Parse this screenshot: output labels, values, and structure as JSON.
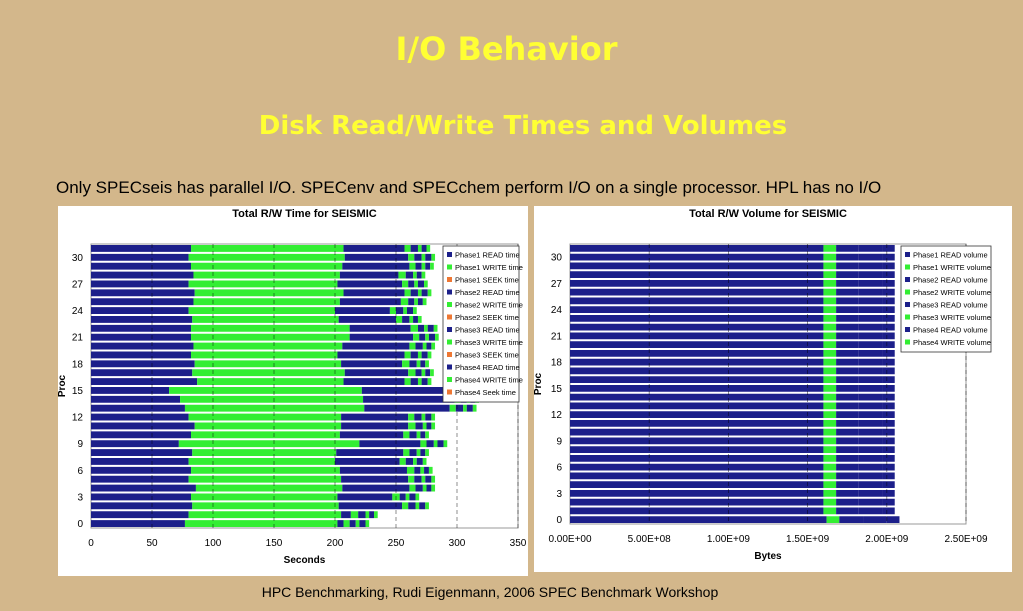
{
  "slide": {
    "title": "I/O Behavior",
    "subtitle": "Disk Read/Write Times and Volumes",
    "note": "Only SPECseis has parallel I/O. SPECenv and SPECchem perform I/O on a single processor. HPL has no I/O",
    "footer": "HPC Benchmarking, Rudi Eigenmann, 2006 SPEC Benchmark Workshop"
  },
  "colors": {
    "background": "#d3b78b",
    "heading": "#ffff33",
    "read_blue": "#1c1f8a",
    "write_green": "#33ee33",
    "seek_orange": "#ee7733"
  },
  "chart_data": [
    {
      "type": "bar",
      "orientation": "horizontal",
      "stacked": true,
      "title": "Total R/W Time for SEISMIC",
      "xlabel": "Seconds",
      "ylabel": "Proc",
      "xlim": [
        0,
        350
      ],
      "xticks": [
        "0",
        "50",
        "100",
        "150",
        "200",
        "250",
        "300",
        "350"
      ],
      "yticks": [
        "0",
        "3",
        "6",
        "9",
        "12",
        "15",
        "18",
        "21",
        "24",
        "27",
        "30"
      ],
      "categories": [
        0,
        1,
        2,
        3,
        4,
        5,
        6,
        7,
        8,
        9,
        10,
        11,
        12,
        13,
        14,
        15,
        16,
        17,
        18,
        19,
        20,
        21,
        22,
        23,
        24,
        25,
        26,
        27,
        28,
        29,
        30,
        31
      ],
      "legend_position": "right",
      "series": [
        {
          "name": "Phase1 READ time",
          "color": "#1c1f8a",
          "values": [
            77,
            80,
            83,
            82,
            86,
            80,
            82,
            80,
            83,
            72,
            82,
            85,
            80,
            77,
            73,
            64,
            87,
            83,
            85,
            82,
            84,
            82,
            82,
            83,
            80,
            84,
            85,
            80,
            84,
            82,
            80,
            82
          ]
        },
        {
          "name": "Phase1 WRITE time",
          "color": "#33ee33",
          "values": [
            125,
            125,
            120,
            120,
            120,
            125,
            122,
            120,
            118,
            148,
            122,
            120,
            125,
            147,
            150,
            158,
            120,
            125,
            120,
            120,
            122,
            130,
            130,
            120,
            120,
            120,
            122,
            122,
            120,
            124,
            128,
            125
          ]
        },
        {
          "name": "Phase1 SEEK time",
          "color": "#ee7733",
          "values": [
            0,
            0,
            0,
            0,
            0,
            0,
            0,
            0,
            0,
            0,
            0,
            0,
            0,
            0,
            0,
            0,
            0,
            0,
            0,
            0,
            0,
            0,
            0,
            0,
            0,
            0,
            0,
            0,
            0,
            0,
            0,
            0
          ]
        },
        {
          "name": "Phase2 READ time",
          "color": "#1c1f8a",
          "values": [
            5,
            8,
            52,
            45,
            55,
            55,
            55,
            53,
            55,
            50,
            52,
            55,
            55,
            70,
            75,
            72,
            50,
            52,
            50,
            55,
            55,
            52,
            50,
            47,
            45,
            50,
            50,
            53,
            48,
            55,
            52,
            50
          ]
        },
        {
          "name": "Phase2 WRITE time",
          "color": "#33ee33",
          "values": [
            5,
            6,
            5,
            6,
            5,
            5,
            6,
            5,
            5,
            5,
            5,
            6,
            5,
            5,
            5,
            5,
            5,
            6,
            6,
            5,
            5,
            5,
            6,
            5,
            5,
            6,
            5,
            5,
            6,
            5,
            5,
            5
          ]
        },
        {
          "name": "Phase2 SEEK time",
          "color": "#ee7733",
          "values": [
            0,
            0,
            0,
            0,
            0,
            0,
            0,
            0,
            0,
            0,
            0,
            0,
            0,
            0,
            0,
            0,
            0,
            0,
            0,
            0,
            0,
            0,
            0,
            0,
            0,
            0,
            0,
            0,
            0,
            0,
            0,
            0
          ]
        },
        {
          "name": "Phase3 READ time",
          "color": "#1c1f8a",
          "values": [
            5,
            6,
            6,
            5,
            6,
            6,
            5,
            6,
            6,
            6,
            6,
            6,
            6,
            6,
            5,
            6,
            6,
            5,
            6,
            6,
            6,
            5,
            5,
            6,
            6,
            5,
            6,
            5,
            6,
            5,
            6,
            6
          ]
        },
        {
          "name": "Phase3 WRITE time",
          "color": "#33ee33",
          "values": [
            3,
            3,
            3,
            3,
            3,
            3,
            3,
            3,
            3,
            3,
            3,
            3,
            3,
            3,
            3,
            3,
            3,
            3,
            3,
            3,
            3,
            3,
            3,
            3,
            3,
            3,
            3,
            3,
            3,
            3,
            3,
            3
          ]
        },
        {
          "name": "Phase3 SEEK time",
          "color": "#ee7733",
          "values": [
            0,
            0,
            0,
            0,
            0,
            0,
            0,
            0,
            0,
            0,
            0,
            0,
            0,
            0,
            0,
            0,
            0,
            0,
            0,
            0,
            0,
            0,
            0,
            0,
            0,
            0,
            0,
            0,
            0,
            0,
            0,
            0
          ]
        },
        {
          "name": "Phase4 READ time",
          "color": "#1c1f8a",
          "values": [
            5,
            4,
            5,
            5,
            4,
            5,
            4,
            5,
            4,
            5,
            4,
            4,
            5,
            5,
            4,
            5,
            5,
            4,
            4,
            5,
            4,
            5,
            5,
            4,
            5,
            4,
            5,
            5,
            4,
            4,
            5,
            4
          ]
        },
        {
          "name": "Phase4 WRITE time",
          "color": "#33ee33",
          "values": [
            3,
            3,
            3,
            3,
            3,
            3,
            3,
            3,
            3,
            3,
            3,
            3,
            3,
            3,
            3,
            3,
            3,
            3,
            3,
            3,
            3,
            3,
            3,
            3,
            3,
            3,
            3,
            3,
            3,
            3,
            3,
            3
          ]
        },
        {
          "name": "Phase4 Seek time",
          "color": "#ee7733",
          "values": [
            0,
            0,
            0,
            0,
            0,
            0,
            0,
            0,
            0,
            0,
            0,
            0,
            0,
            0,
            0,
            0,
            0,
            0,
            0,
            0,
            0,
            0,
            0,
            0,
            0,
            0,
            0,
            0,
            0,
            0,
            0,
            0
          ]
        }
      ]
    },
    {
      "type": "bar",
      "orientation": "horizontal",
      "stacked": true,
      "title": "Total R/W Volume for SEISMIC",
      "xlabel": "Bytes",
      "ylabel": "Proc",
      "xlim": [
        0,
        2500000000
      ],
      "xticks": [
        "0.00E+00",
        "5.00E+08",
        "1.00E+09",
        "1.50E+09",
        "2.00E+09",
        "2.50E+09"
      ],
      "yticks": [
        "0",
        "3",
        "6",
        "9",
        "12",
        "15",
        "18",
        "21",
        "24",
        "27",
        "30"
      ],
      "categories": [
        0,
        1,
        2,
        3,
        4,
        5,
        6,
        7,
        8,
        9,
        10,
        11,
        12,
        13,
        14,
        15,
        16,
        17,
        18,
        19,
        20,
        21,
        22,
        23,
        24,
        25,
        26,
        27,
        28,
        29,
        30,
        31
      ],
      "legend_position": "right",
      "series": [
        {
          "name": "Phase1 READ volume",
          "color": "#1c1f8a",
          "values": [
            1620000000,
            1600000000,
            1600000000,
            1600000000,
            1600000000,
            1600000000,
            1600000000,
            1600000000,
            1600000000,
            1600000000,
            1600000000,
            1600000000,
            1600000000,
            1600000000,
            1600000000,
            1600000000,
            1600000000,
            1600000000,
            1600000000,
            1600000000,
            1600000000,
            1600000000,
            1600000000,
            1600000000,
            1600000000,
            1600000000,
            1600000000,
            1600000000,
            1600000000,
            1600000000,
            1600000000,
            1600000000
          ]
        },
        {
          "name": "Phase1 WRITE volume",
          "color": "#33ee33",
          "values": [
            80000000,
            80000000,
            80000000,
            80000000,
            80000000,
            80000000,
            80000000,
            80000000,
            80000000,
            80000000,
            80000000,
            80000000,
            80000000,
            80000000,
            80000000,
            80000000,
            80000000,
            80000000,
            80000000,
            80000000,
            80000000,
            80000000,
            80000000,
            80000000,
            80000000,
            80000000,
            80000000,
            80000000,
            80000000,
            80000000,
            80000000,
            80000000
          ]
        },
        {
          "name": "Phase2 READ volume",
          "color": "#1c1f8a",
          "values": [
            150000000,
            140000000,
            140000000,
            140000000,
            140000000,
            140000000,
            140000000,
            140000000,
            140000000,
            140000000,
            140000000,
            140000000,
            140000000,
            140000000,
            140000000,
            140000000,
            140000000,
            140000000,
            140000000,
            140000000,
            140000000,
            140000000,
            140000000,
            140000000,
            140000000,
            140000000,
            140000000,
            140000000,
            140000000,
            140000000,
            140000000,
            140000000
          ]
        },
        {
          "name": "Phase2 WRITE volume",
          "color": "#33ee33",
          "values": [
            0,
            0,
            0,
            0,
            0,
            0,
            0,
            0,
            0,
            0,
            0,
            0,
            0,
            0,
            0,
            0,
            0,
            0,
            0,
            0,
            0,
            0,
            0,
            0,
            0,
            0,
            0,
            0,
            0,
            0,
            0,
            0
          ]
        },
        {
          "name": "Phase3 READ volume",
          "color": "#1c1f8a",
          "values": [
            150000000,
            150000000,
            150000000,
            150000000,
            150000000,
            150000000,
            150000000,
            150000000,
            150000000,
            150000000,
            150000000,
            150000000,
            150000000,
            150000000,
            150000000,
            150000000,
            150000000,
            150000000,
            150000000,
            150000000,
            150000000,
            150000000,
            150000000,
            150000000,
            150000000,
            150000000,
            150000000,
            150000000,
            150000000,
            150000000,
            150000000,
            150000000
          ]
        },
        {
          "name": "Phase3 WRITE volume",
          "color": "#33ee33",
          "values": [
            0,
            0,
            0,
            0,
            0,
            0,
            0,
            0,
            0,
            0,
            0,
            0,
            0,
            0,
            0,
            0,
            0,
            0,
            0,
            0,
            0,
            0,
            0,
            0,
            0,
            0,
            0,
            0,
            0,
            0,
            0,
            0
          ]
        },
        {
          "name": "Phase4 READ volume",
          "color": "#1c1f8a",
          "values": [
            80000000,
            80000000,
            80000000,
            80000000,
            80000000,
            80000000,
            80000000,
            80000000,
            80000000,
            80000000,
            80000000,
            80000000,
            80000000,
            80000000,
            80000000,
            80000000,
            80000000,
            80000000,
            80000000,
            80000000,
            80000000,
            80000000,
            80000000,
            80000000,
            80000000,
            80000000,
            80000000,
            80000000,
            80000000,
            80000000,
            80000000,
            80000000
          ]
        },
        {
          "name": "Phase4 WRITE volume",
          "color": "#33ee33",
          "values": [
            0,
            0,
            0,
            0,
            0,
            0,
            0,
            0,
            0,
            0,
            0,
            0,
            0,
            0,
            0,
            0,
            0,
            0,
            0,
            0,
            0,
            0,
            0,
            0,
            0,
            0,
            0,
            0,
            0,
            0,
            0,
            0
          ]
        }
      ]
    }
  ]
}
